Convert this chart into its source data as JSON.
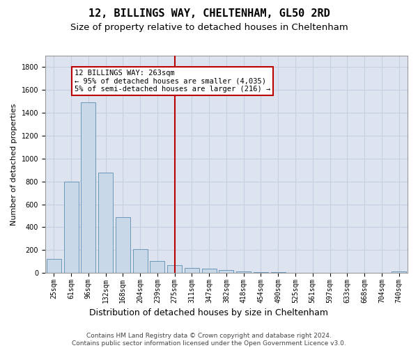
{
  "title1": "12, BILLINGS WAY, CHELTENHAM, GL50 2RD",
  "title2": "Size of property relative to detached houses in Cheltenham",
  "xlabel": "Distribution of detached houses by size in Cheltenham",
  "ylabel": "Number of detached properties",
  "bar_labels": [
    "25sqm",
    "61sqm",
    "96sqm",
    "132sqm",
    "168sqm",
    "204sqm",
    "239sqm",
    "275sqm",
    "311sqm",
    "347sqm",
    "382sqm",
    "418sqm",
    "454sqm",
    "490sqm",
    "525sqm",
    "561sqm",
    "597sqm",
    "633sqm",
    "668sqm",
    "704sqm",
    "740sqm"
  ],
  "bar_values": [
    125,
    800,
    1490,
    880,
    490,
    205,
    105,
    70,
    42,
    35,
    28,
    15,
    8,
    4,
    2,
    1,
    1,
    0,
    0,
    0,
    15
  ],
  "bar_color": "#c8d8e8",
  "bar_edge_color": "#5b8db0",
  "vline_x": 7,
  "vline_color": "#bb0000",
  "annotation_text": "12 BILLINGS WAY: 263sqm\n← 95% of detached houses are smaller (4,035)\n5% of semi-detached houses are larger (216) →",
  "annotation_box_color": "#ffffff",
  "annotation_box_edge": "#bb0000",
  "ylim": [
    0,
    1900
  ],
  "yticks": [
    0,
    200,
    400,
    600,
    800,
    1000,
    1200,
    1400,
    1600,
    1800
  ],
  "grid_color": "#c8cfe0",
  "bg_color": "#dde4f0",
  "footer": "Contains HM Land Registry data © Crown copyright and database right 2024.\nContains public sector information licensed under the Open Government Licence v3.0.",
  "title1_fontsize": 11,
  "title2_fontsize": 9.5,
  "ylabel_fontsize": 8,
  "xlabel_fontsize": 9,
  "tick_fontsize": 7,
  "footer_fontsize": 6.5,
  "annot_fontsize": 7.5
}
